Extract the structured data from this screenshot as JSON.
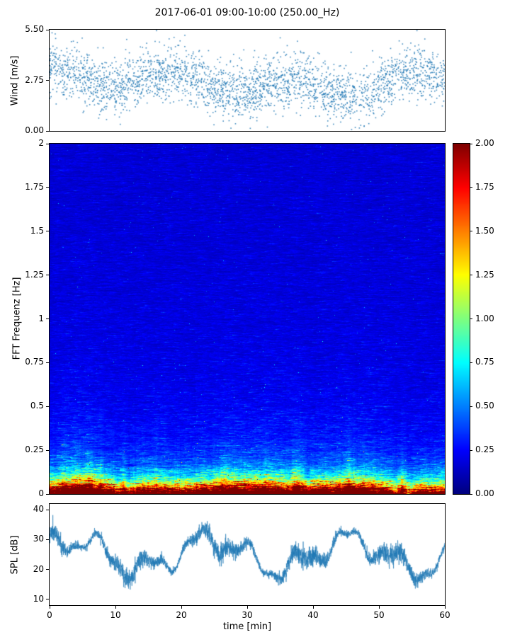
{
  "figure": {
    "title": "2017-06-01 09:00-10:00 (250.00_Hz)",
    "background": "#ffffff",
    "accent_color": "#1f77b4"
  },
  "chart_data": [
    {
      "type": "scatter",
      "name": "wind-speed",
      "ylabel": "Wind [m/s]",
      "ylim": [
        0,
        5.5
      ],
      "ytick_values": [
        0,
        2.75,
        5.5
      ],
      "ytick_labels": [
        "0.00",
        "2.75",
        "5.50"
      ],
      "xlim": [
        0,
        60
      ],
      "marker_color": "#1f77b4",
      "summary": "~2800 small scattered wind-speed samples over 60 min, mean ~2.6 m/s, spread ~0.75 m/s, extremes 0.1-5.4 m/s, gusty bursts toward 5 m/s",
      "gen": {
        "seed": 11,
        "n": 2800,
        "mean": 2.55,
        "sigma": 0.72,
        "min": 0.08,
        "max": 5.45
      }
    },
    {
      "type": "heatmap",
      "name": "fft-spectrogram",
      "ylabel": "FFT Frequenz [Hz]",
      "ylim": [
        0,
        2
      ],
      "ytick_values": [
        0,
        0.25,
        0.5,
        0.75,
        1,
        1.25,
        1.5,
        1.75,
        2
      ],
      "ytick_labels": [
        "0",
        "0.25",
        "0.5",
        "0.75",
        "1",
        "1.25",
        "1.5",
        "1.75",
        "2"
      ],
      "xlim": [
        0,
        60
      ],
      "colormap": "jet",
      "clim": [
        0,
        2
      ],
      "colorbar_tick_values": [
        0,
        0.25,
        0.5,
        0.75,
        1,
        1.25,
        1.5,
        1.75,
        2
      ],
      "colorbar_tick_labels": [
        "0.00",
        "0.25",
        "0.50",
        "0.75",
        "1.00",
        "1.25",
        "1.50",
        "1.75",
        "2.00"
      ],
      "intensity_profile": {
        "description": "energy concentrated below 0.25 Hz: saturated dark-red band near 0 Hz, orange/yellow 0.03-0.06 Hz, green/cyan 0.08-0.15 Hz, light-blue 0.2-0.3 Hz, mottled dark-blue background above 0.3 Hz with horizontal noise streaks and column-wise intensity variation"
      },
      "gen": {
        "seed": 7,
        "background": 0.14,
        "terms": [
          [
            0.1,
            0.7
          ],
          [
            0.55,
            0.13
          ],
          [
            2.2,
            0.045
          ]
        ],
        "noise_sigma": 0.55,
        "ar": 0.82,
        "col_walk": 0.05,
        "speckle_p": 0.0012
      }
    },
    {
      "type": "line",
      "name": "spl",
      "ylabel": "SPL [dB]",
      "xlabel": "time [min]",
      "ylim": [
        8,
        42
      ],
      "ytick_values": [
        10,
        20,
        30,
        40
      ],
      "ytick_labels": [
        "10",
        "20",
        "30",
        "40"
      ],
      "xlim": [
        0,
        60
      ],
      "xtick_values": [
        0,
        10,
        20,
        30,
        40,
        50,
        60
      ],
      "xtick_labels": [
        "0",
        "10",
        "20",
        "30",
        "40",
        "50",
        "60"
      ],
      "line_color": "#1f77b4",
      "summary": "dense noisy SPL trace oscillating between ~12 and ~40 dB around a ~25 dB mean, slow undulations with dips near 25, 37 and peaks near 42-45 min",
      "gen": {
        "seed": 5,
        "n": 3500,
        "mean": 25
      }
    }
  ]
}
